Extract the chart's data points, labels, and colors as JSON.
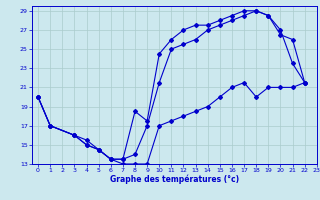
{
  "title": "Graphe des températures (°c)",
  "bg_color": "#cce8ee",
  "line_color": "#0000cc",
  "grid_color": "#aacccc",
  "xlim": [
    -0.5,
    23
  ],
  "ylim": [
    13,
    29.5
  ],
  "yticks": [
    13,
    15,
    17,
    19,
    21,
    23,
    25,
    27,
    29
  ],
  "xticks": [
    0,
    1,
    2,
    3,
    4,
    5,
    6,
    7,
    8,
    9,
    10,
    11,
    12,
    13,
    14,
    15,
    16,
    17,
    18,
    19,
    20,
    21,
    22,
    23
  ],
  "curve1_x": [
    0,
    1,
    3,
    4,
    5,
    6,
    7,
    8,
    9,
    10,
    11,
    12,
    13,
    14,
    15,
    16,
    17,
    18,
    19,
    20,
    21,
    22
  ],
  "curve1_y": [
    20,
    17,
    16,
    15,
    14.5,
    13.5,
    13,
    13,
    13,
    17,
    17.5,
    18,
    18.5,
    19,
    20,
    21,
    21.5,
    20,
    21,
    21,
    21,
    21.5
  ],
  "curve2_x": [
    0,
    1,
    3,
    4,
    5,
    6,
    7,
    8,
    9,
    10,
    11,
    12,
    13,
    14,
    15,
    16,
    17,
    18,
    19,
    20,
    21,
    22
  ],
  "curve2_y": [
    20,
    17,
    16,
    15,
    14.5,
    13.5,
    13.5,
    18.5,
    17.5,
    24.5,
    26,
    27,
    27.5,
    27.5,
    28,
    28.5,
    29,
    29,
    28.5,
    27,
    23.5,
    21.5
  ],
  "curve3_x": [
    0,
    1,
    3,
    4,
    5,
    6,
    7,
    8,
    9,
    10,
    11,
    12,
    13,
    14,
    15,
    16,
    17,
    18,
    19,
    20,
    21,
    22
  ],
  "curve3_y": [
    20,
    17,
    16,
    15.5,
    14.5,
    13.5,
    13.5,
    14,
    17,
    21.5,
    25,
    25.5,
    26,
    27,
    27.5,
    28,
    28.5,
    29,
    28.5,
    26.5,
    26,
    21.5
  ]
}
